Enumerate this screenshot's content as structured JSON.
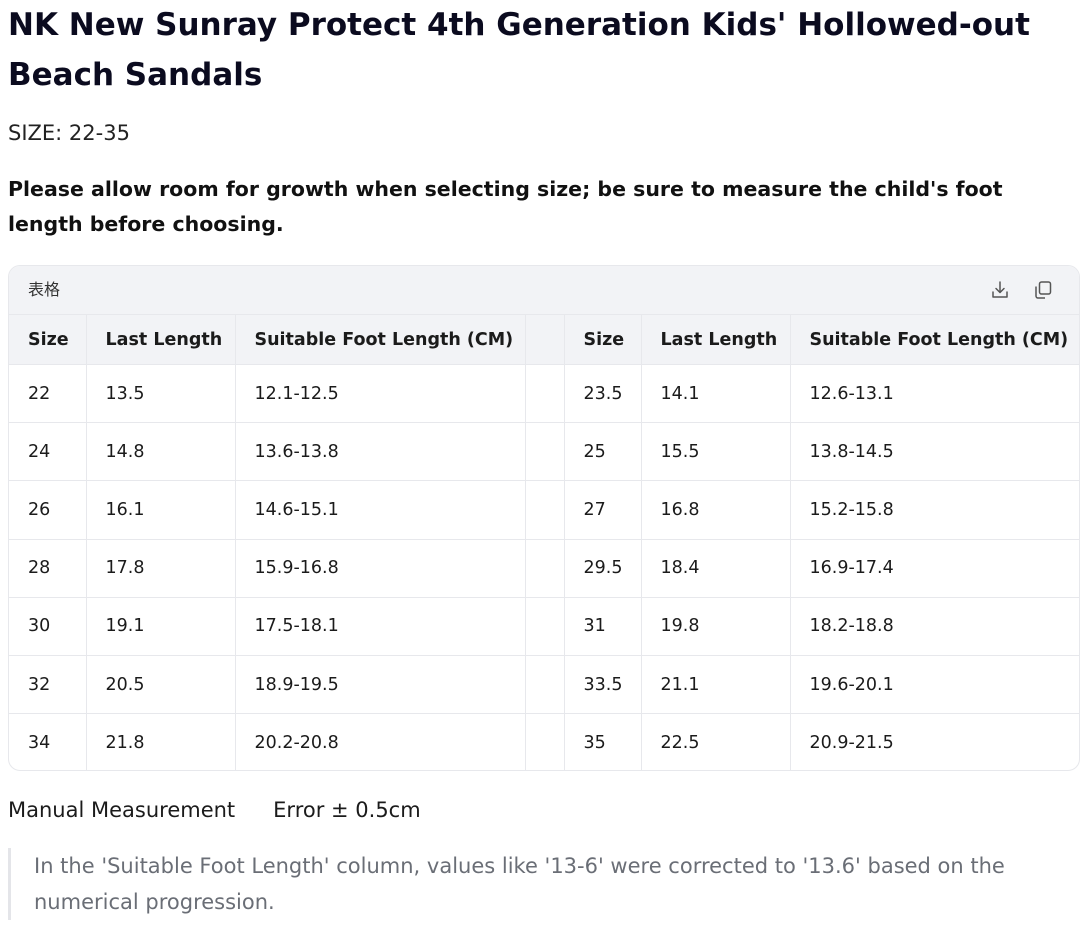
{
  "title": "NK New Sunray Protect 4th Generation Kids' Hollowed-out Beach Sandals",
  "size_line": "SIZE: 22-35",
  "note": "Please allow room for growth when selecting size; be sure to measure the child's foot length before choosing.",
  "table": {
    "toolbar_label": "表格",
    "download_icon": "download-icon",
    "copy_icon": "copy-icon",
    "headers": [
      "Size",
      "Last Length",
      "Suitable Foot Length (CM)",
      "",
      "Size",
      "Last Length",
      "Suitable Foot Length (CM)"
    ],
    "rows": [
      [
        "22",
        "13.5",
        "12.1-12.5",
        "",
        "23.5",
        "14.1",
        "12.6-13.1"
      ],
      [
        "24",
        "14.8",
        "13.6-13.8",
        "",
        "25",
        "15.5",
        "13.8-14.5"
      ],
      [
        "26",
        "16.1",
        "14.6-15.1",
        "",
        "27",
        "16.8",
        "15.2-15.8"
      ],
      [
        "28",
        "17.8",
        "15.9-16.8",
        "",
        "29.5",
        "18.4",
        "16.9-17.4"
      ],
      [
        "30",
        "19.1",
        "17.5-18.1",
        "",
        "31",
        "19.8",
        "18.2-18.8"
      ],
      [
        "32",
        "20.5",
        "18.9-19.5",
        "",
        "33.5",
        "21.1",
        "19.6-20.1"
      ],
      [
        "34",
        "21.8",
        "20.2-20.8",
        "",
        "35",
        "22.5",
        "20.9-21.5"
      ]
    ]
  },
  "measurement": {
    "label": "Manual Measurement",
    "value": "Error ± 0.5cm"
  },
  "quote": "In the 'Suitable Foot Length' column, values like '13-6' were corrected to '13.6' based on the numerical progression.",
  "colors": {
    "header_bg": "#f2f3f6",
    "border": "#e7e8ec",
    "quote_text": "#6a6e76"
  }
}
